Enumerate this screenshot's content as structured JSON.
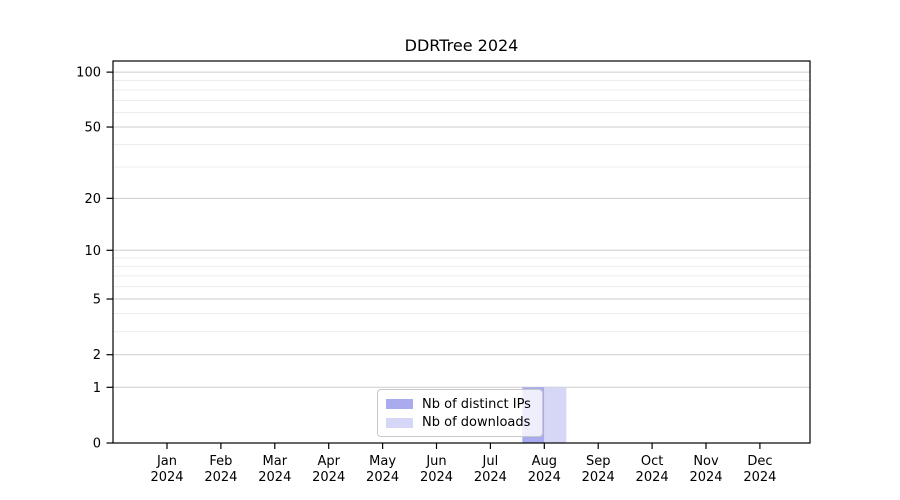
{
  "page": {
    "background": "#ffffff"
  },
  "chart_data": {
    "type": "bar",
    "title": "DDRTree 2024",
    "categories": [
      "Jan 2024",
      "Feb 2024",
      "Mar 2024",
      "Apr 2024",
      "May 2024",
      "Jun 2024",
      "Jul 2024",
      "Aug 2024",
      "Sep 2024",
      "Oct 2024",
      "Nov 2024",
      "Dec 2024"
    ],
    "series": [
      {
        "name": "Nb of distinct IPs",
        "color": "#aaaaee",
        "values": [
          0,
          0,
          0,
          0,
          0,
          0,
          0,
          1,
          0,
          0,
          0,
          0
        ]
      },
      {
        "name": "Nb of downloads",
        "color": "#d6d6f6",
        "values": [
          0,
          0,
          0,
          0,
          0,
          0,
          0,
          1,
          0,
          0,
          0,
          0
        ]
      }
    ],
    "xlabel": "",
    "ylabel": "",
    "y_scale": "log1p",
    "y_ticks": [
      0,
      1,
      2,
      5,
      10,
      20,
      50,
      100
    ],
    "y_minor_ticks": [
      3,
      4,
      6,
      7,
      8,
      9,
      30,
      40,
      60,
      70,
      80,
      90
    ],
    "y_max": 115,
    "grid": true,
    "legend_position": "lower center",
    "colors": {
      "axis": "#000000",
      "tick_text": "#000000",
      "major_grid": "#cccccc",
      "minor_grid": "#ececec"
    }
  }
}
